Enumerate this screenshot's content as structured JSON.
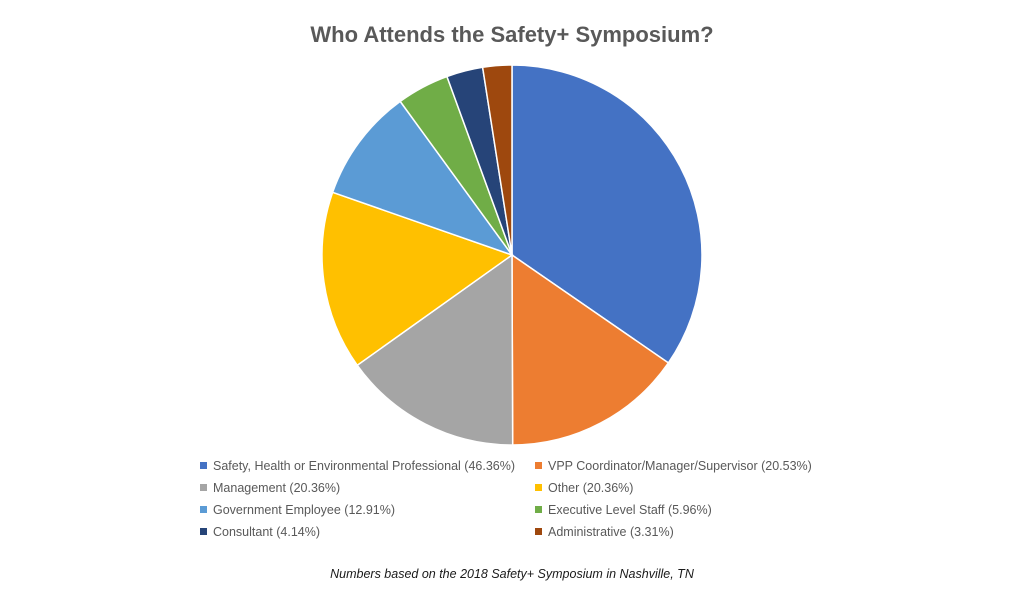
{
  "chart_data": {
    "type": "pie",
    "title": "Who Attends the Safety+ Symposium?",
    "footnote": "Numbers based on the 2018 Safety+ Symposium in Nashville, TN",
    "legend_position": "bottom",
    "slices": [
      {
        "label": "Safety, Health or Environmental Professional (46.36%)",
        "value": 46.36,
        "color": "#4472C4"
      },
      {
        "label": "VPP Coordinator/Manager/Supervisor (20.53%)",
        "value": 20.53,
        "color": "#ED7D31"
      },
      {
        "label": "Management (20.36%)",
        "value": 20.36,
        "color": "#A5A5A5"
      },
      {
        "label": "Other (20.36%)",
        "value": 20.36,
        "color": "#FFC000"
      },
      {
        "label": "Government Employee (12.91%)",
        "value": 12.91,
        "color": "#5B9BD5"
      },
      {
        "label": "Executive Level Staff (5.96%)",
        "value": 5.96,
        "color": "#70AD47"
      },
      {
        "label": "Consultant (4.14%)",
        "value": 4.14,
        "color": "#264478"
      },
      {
        "label": "Administrative (3.31%)",
        "value": 3.31,
        "color": "#9E480E"
      }
    ]
  }
}
